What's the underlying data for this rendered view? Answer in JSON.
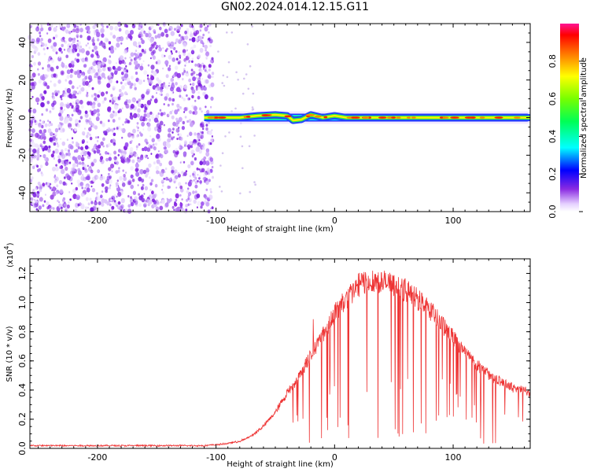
{
  "title": "GN02.2024.014.12.15.G11",
  "chart_data": [
    {
      "type": "heatmap",
      "xlabel": "Height of straight line (km)",
      "ylabel": "Frequency (Hz)",
      "xlim": [
        -257,
        165
      ],
      "ylim": [
        -50,
        50
      ],
      "x_ticks": [
        -200,
        -100,
        0,
        100
      ],
      "y_ticks": [
        -40,
        -20,
        0,
        20,
        40
      ],
      "colorbar": {
        "label": "Normalized spectral amplitude",
        "range": [
          0,
          1
        ],
        "ticks": [
          "0.0",
          "0.2",
          "0.4",
          "0.6",
          "0.8"
        ]
      },
      "noise_region_x": [
        -257,
        -100
      ],
      "signal_band": {
        "x": [
          -110,
          165
        ],
        "freq_hz": 0
      },
      "ridge_points": [
        {
          "x": -110,
          "y": 0
        },
        {
          "x": -80,
          "y": 0
        },
        {
          "x": -65,
          "y": 1
        },
        {
          "x": -50,
          "y": 1.5
        },
        {
          "x": -40,
          "y": 1
        },
        {
          "x": -35,
          "y": -1.5
        },
        {
          "x": -28,
          "y": -1
        },
        {
          "x": -20,
          "y": 1.5
        },
        {
          "x": -10,
          "y": 0
        },
        {
          "x": 0,
          "y": 1
        },
        {
          "x": 10,
          "y": 0
        },
        {
          "x": 50,
          "y": 0
        },
        {
          "x": 100,
          "y": 0
        },
        {
          "x": 165,
          "y": 0
        }
      ]
    },
    {
      "type": "line",
      "xlabel": "Height of straight line (km)",
      "ylabel": "SNR (10 * v/v)",
      "scale_note": "(x10",
      "scale_exp": "4",
      "xlim": [
        -257,
        165
      ],
      "ylim": [
        0,
        1.3
      ],
      "x_ticks": [
        -200,
        -100,
        0,
        100
      ],
      "y_ticks": [
        "0.0",
        "0.2",
        "0.4",
        "0.6",
        "0.8",
        "1.0",
        "1.2"
      ],
      "color": "#ee3333",
      "envelope": [
        [
          -257,
          0.02
        ],
        [
          -150,
          0.02
        ],
        [
          -110,
          0.02
        ],
        [
          -95,
          0.03
        ],
        [
          -80,
          0.05
        ],
        [
          -70,
          0.09
        ],
        [
          -60,
          0.16
        ],
        [
          -50,
          0.26
        ],
        [
          -40,
          0.4
        ],
        [
          -30,
          0.52
        ],
        [
          -20,
          0.68
        ],
        [
          -10,
          0.82
        ],
        [
          0,
          0.98
        ],
        [
          10,
          1.08
        ],
        [
          20,
          1.18
        ],
        [
          30,
          1.22
        ],
        [
          40,
          1.2
        ],
        [
          50,
          1.18
        ],
        [
          60,
          1.14
        ],
        [
          70,
          1.08
        ],
        [
          80,
          1.0
        ],
        [
          90,
          0.9
        ],
        [
          100,
          0.8
        ],
        [
          110,
          0.7
        ],
        [
          120,
          0.6
        ],
        [
          130,
          0.53
        ],
        [
          140,
          0.48
        ],
        [
          150,
          0.44
        ],
        [
          160,
          0.42
        ],
        [
          165,
          0.4
        ]
      ]
    }
  ]
}
